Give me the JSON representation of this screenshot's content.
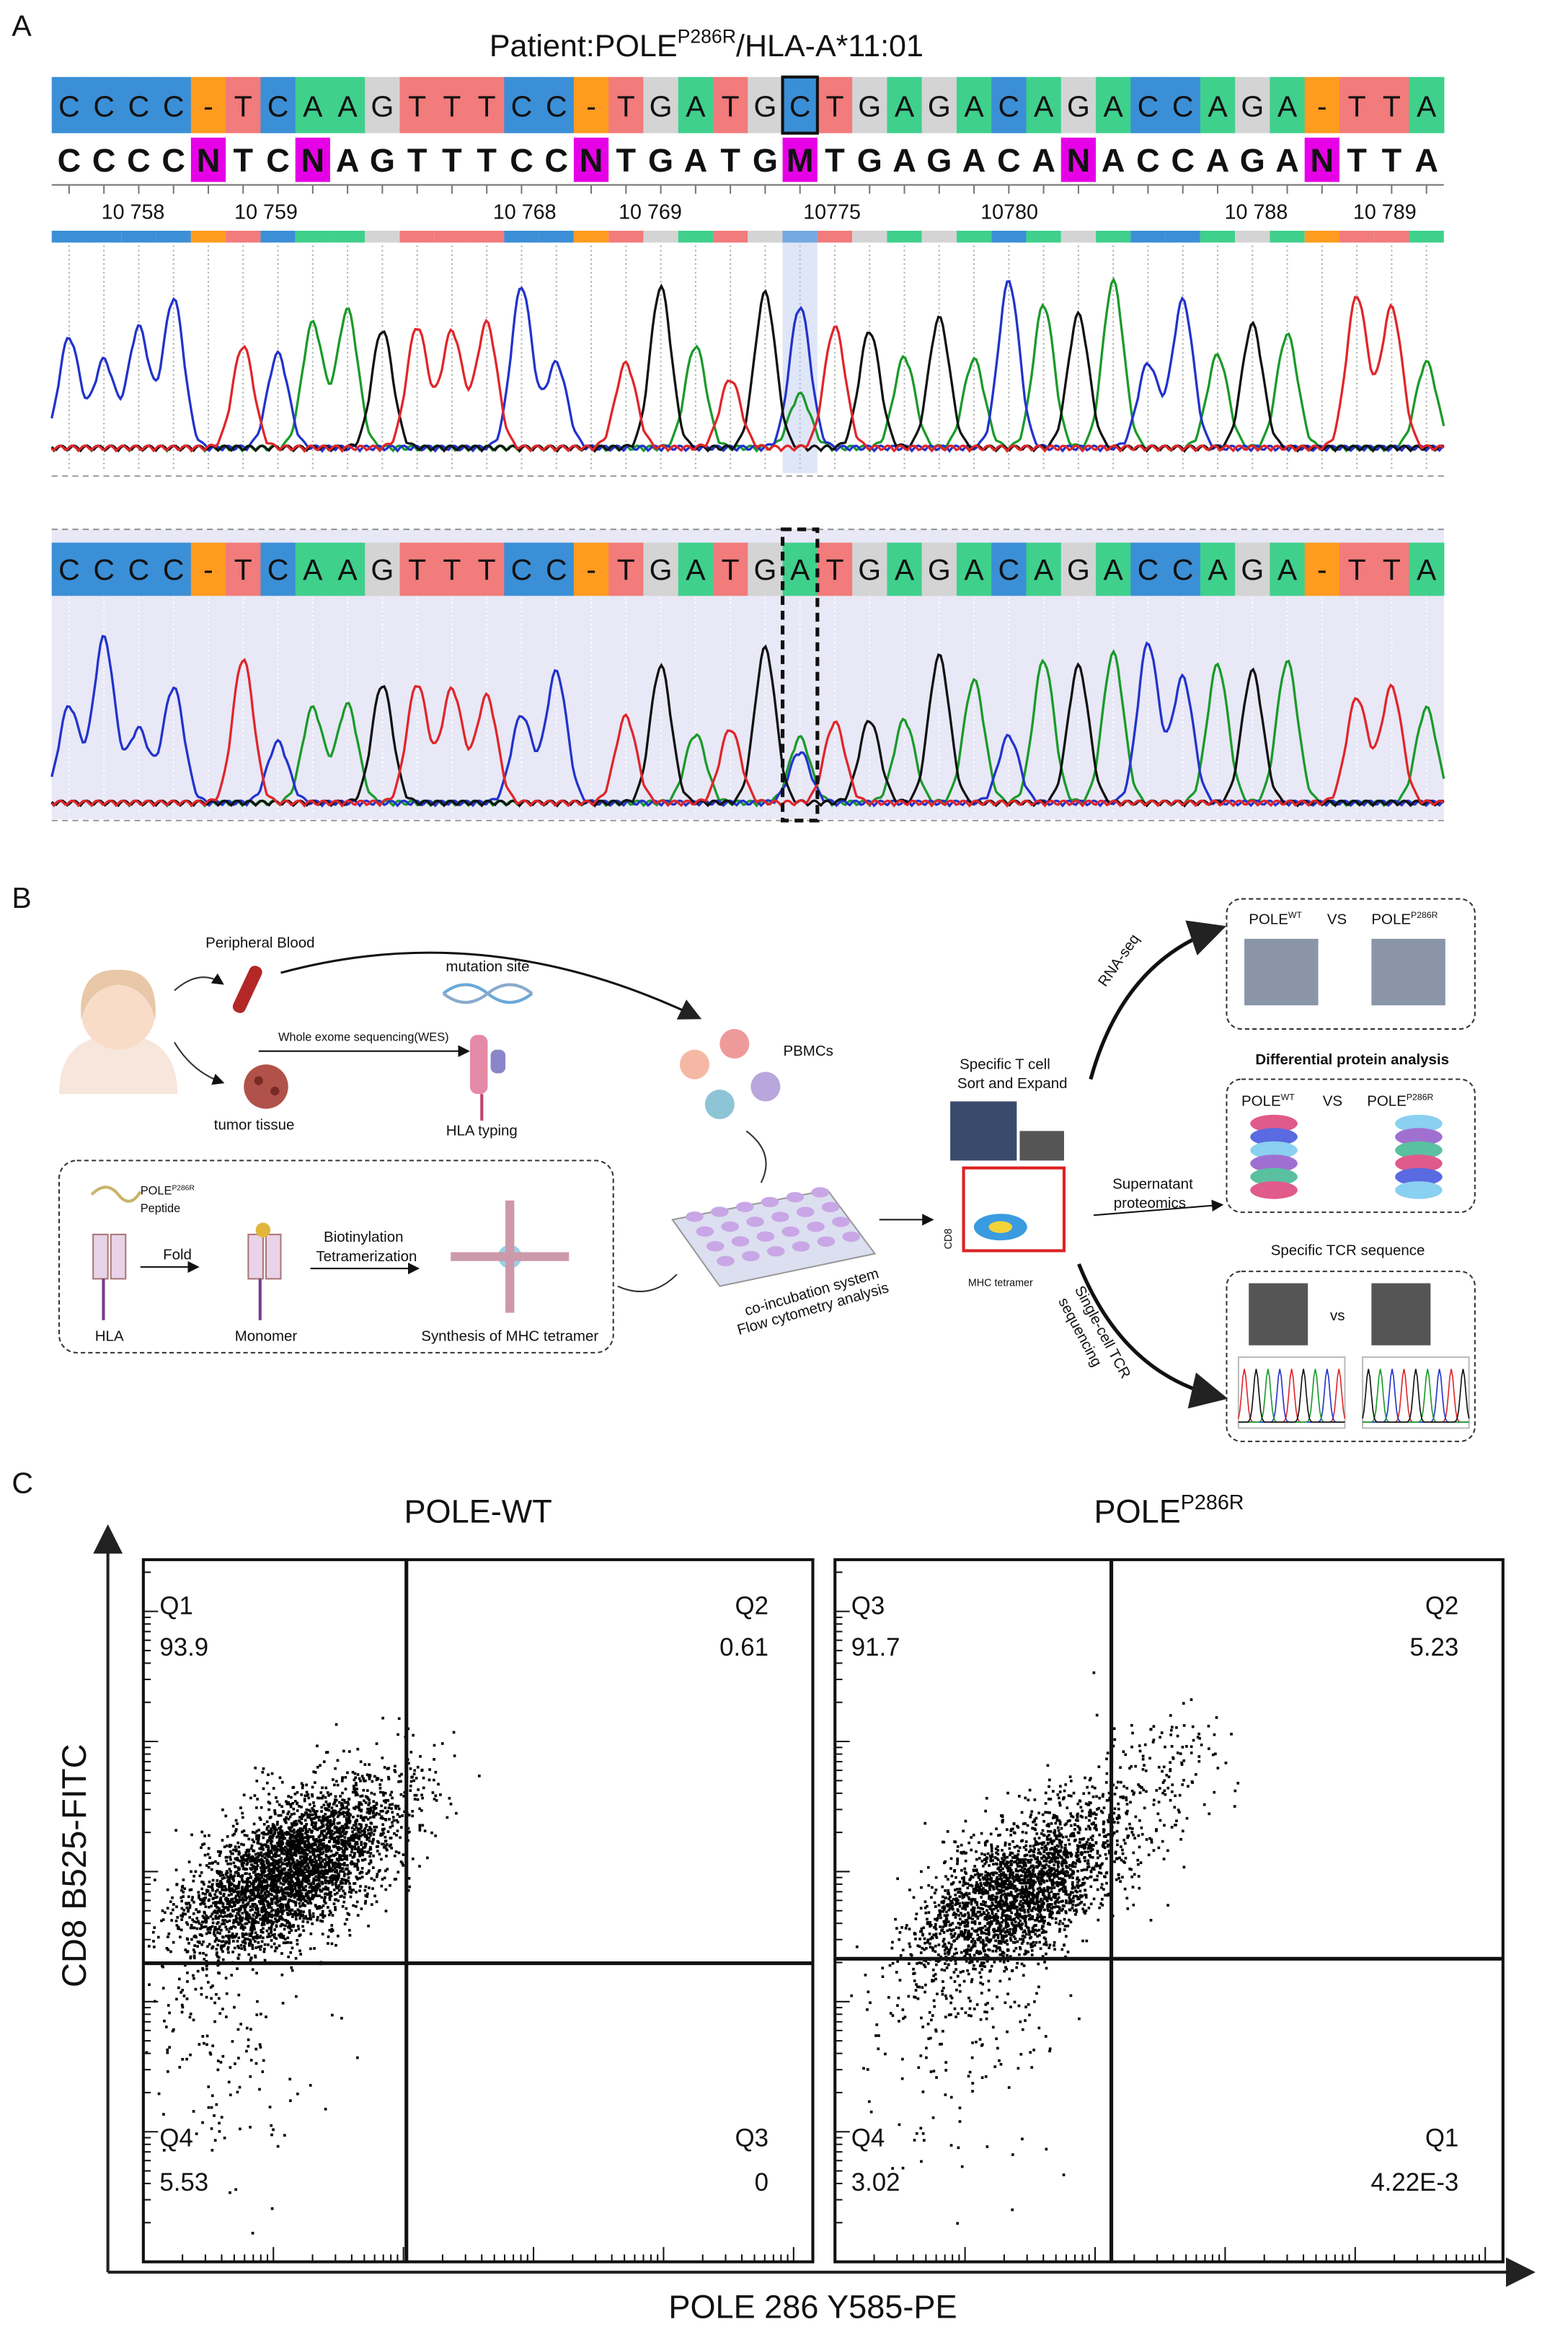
{
  "panel_a": {
    "label": "A",
    "title": {
      "prefix": "Patient:POLE",
      "sup": "P286R",
      "suffix": "/HLA-A*11:01"
    },
    "reference_sequence": [
      "C",
      "C",
      "C",
      "C",
      "-",
      "T",
      "C",
      "A",
      "A",
      "G",
      "T",
      "T",
      "T",
      "C",
      "C",
      "-",
      "T",
      "G",
      "A",
      "T",
      "G",
      "C",
      "T",
      "G",
      "A",
      "G",
      "A",
      "C",
      "A",
      "G",
      "A",
      "C",
      "C",
      "A",
      "G",
      "A",
      "-",
      "T",
      "T",
      "A"
    ],
    "called_sequence": [
      "C",
      "C",
      "C",
      "C",
      "N",
      "T",
      "C",
      "N",
      "A",
      "G",
      "T",
      "T",
      "T",
      "C",
      "C",
      "N",
      "T",
      "G",
      "A",
      "T",
      "G",
      "M",
      "T",
      "G",
      "A",
      "G",
      "A",
      "C",
      "A",
      "N",
      "A",
      "C",
      "C",
      "A",
      "G",
      "A",
      "N",
      "T",
      "T",
      "A"
    ],
    "mutant_sequence": [
      "C",
      "C",
      "C",
      "C",
      "-",
      "T",
      "C",
      "A",
      "A",
      "G",
      "T",
      "T",
      "T",
      "C",
      "C",
      "-",
      "T",
      "G",
      "A",
      "T",
      "G",
      "A",
      "T",
      "G",
      "A",
      "G",
      "A",
      "C",
      "A",
      "G",
      "A",
      "C",
      "C",
      "A",
      "G",
      "A",
      "-",
      "T",
      "T",
      "A"
    ],
    "positions": [
      "10 758",
      "10 759",
      "10 768",
      "10 769",
      "10775",
      "10780",
      "10 788",
      "10 789"
    ]
  },
  "panel_b": {
    "label": "B",
    "peripheral_blood": "Peripheral Blood",
    "mutation_site": "mutation site",
    "wes": "Whole exome sequencing(WES)",
    "tumor_tissue": "tumor tissue",
    "hla_typing": "HLA typing",
    "pbmcs": "PBMCs",
    "peptide": {
      "prefix": "POLE",
      "sup": "P286R",
      "line2": "Peptide"
    },
    "fold": "Fold",
    "biotinylation": "Biotinylation",
    "tetramerization": "Tetramerization",
    "hla": "HLA",
    "monomer": "Monomer",
    "synthesis": "Synthesis of MHC tetramer",
    "coincubation": "co-incubation system",
    "flow": "Flow cytometry analysis",
    "specific_t_cell": "Specific T cell",
    "sort_expand": "Sort and Expand",
    "cd8": "CD8",
    "mhc_tetramer": "MHC tetramer",
    "rna_seq": "RNA-seq",
    "supernatant": "Supernatant",
    "proteomics": "proteomics",
    "single_cell_1": "Single-cell TCR",
    "single_cell_2": "sequencing",
    "box1": {
      "left": {
        "prefix": "POLE",
        "sup": "WT"
      },
      "vs": "VS",
      "right": {
        "prefix": "POLE",
        "sup": "P286R"
      }
    },
    "differential": "Differential protein analysis",
    "box2": {
      "left": {
        "prefix": "POLE",
        "sup": "WT"
      },
      "vs": "VS",
      "right": {
        "prefix": "POLE",
        "sup": "P286R"
      }
    },
    "specific_tcr": "Specific TCR sequence",
    "box3_vs": "vs"
  },
  "panel_c": {
    "label": "C",
    "y_label": "CD8 B525-FITC",
    "x_label": "POLE 286 Y585-PE",
    "plots": [
      {
        "title": {
          "prefix": "POLE-WT",
          "sup": ""
        },
        "quadrants": {
          "top_left": {
            "name": "Q1",
            "value": "93.9"
          },
          "top_right": {
            "name": "Q2",
            "value": "0.61"
          },
          "bottom_left": {
            "name": "Q4",
            "value": "5.53"
          },
          "bottom_right": {
            "name": "Q3",
            "value": "0"
          }
        }
      },
      {
        "title": {
          "prefix": "POLE",
          "sup": "P286R"
        },
        "quadrants": {
          "top_left": {
            "name": "Q3",
            "value": "91.7"
          },
          "top_right": {
            "name": "Q2",
            "value": "5.23"
          },
          "bottom_left": {
            "name": "Q4",
            "value": "3.02"
          },
          "bottom_right": {
            "name": "Q1",
            "value": "4.22E-3"
          }
        }
      }
    ]
  }
}
